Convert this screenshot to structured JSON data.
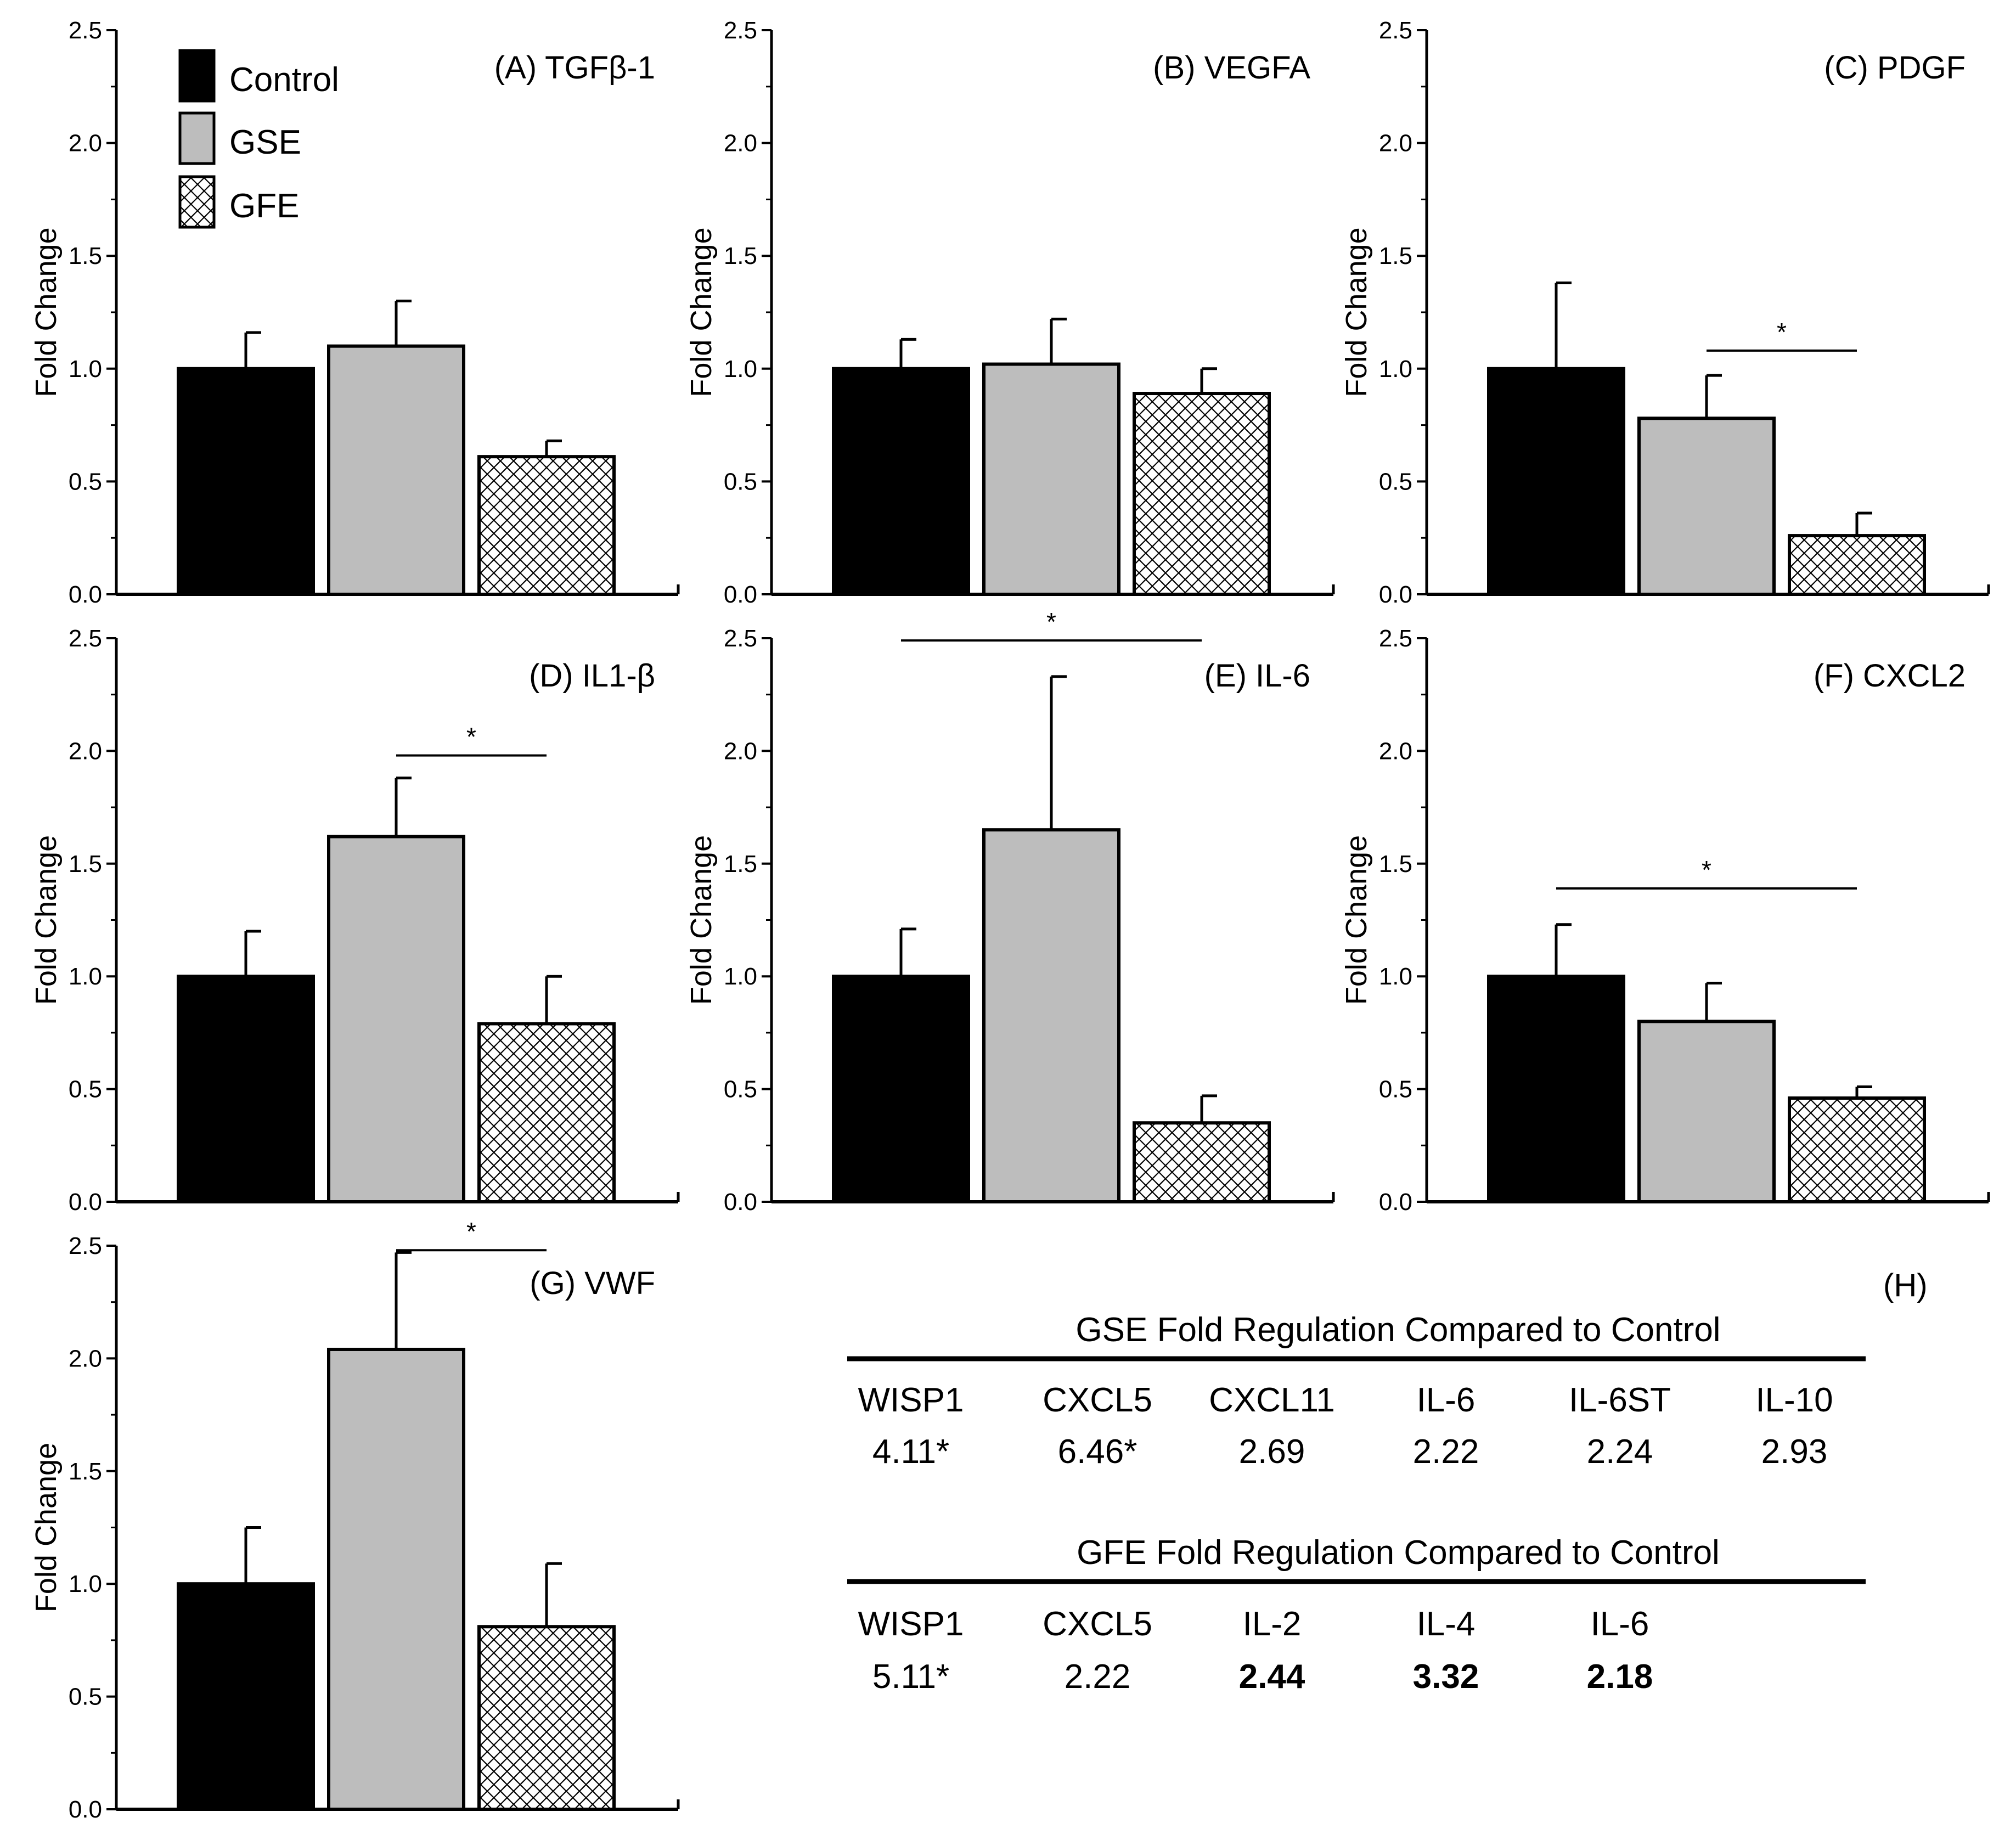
{
  "colors": {
    "control": "#000000",
    "gse": "#bdbdbd",
    "gfe_hatch": "#000000",
    "axis": "#000000"
  },
  "legend": {
    "items": [
      {
        "label": "Control",
        "style": "control"
      },
      {
        "label": "GSE",
        "style": "gse"
      },
      {
        "label": "GFE",
        "style": "gfe"
      }
    ]
  },
  "chart_data": [
    {
      "type": "bar",
      "title": "(A) TGFβ-1",
      "ylabel": "Fold Change",
      "ylim": [
        0,
        2.5
      ],
      "yticks": [
        "0.0",
        "0.5",
        "1.0",
        "1.5",
        "2.0",
        "2.5"
      ],
      "categories": [
        "Control",
        "GSE",
        "GFE"
      ],
      "values": [
        1.0,
        1.1,
        0.61
      ],
      "errors": [
        0.16,
        0.2,
        0.07
      ],
      "significance": []
    },
    {
      "type": "bar",
      "title": "(B) VEGFA",
      "ylabel": "Fold Change",
      "ylim": [
        0,
        2.5
      ],
      "yticks": [
        "0.0",
        "0.5",
        "1.0",
        "1.5",
        "2.0",
        "2.5"
      ],
      "categories": [
        "Control",
        "GSE",
        "GFE"
      ],
      "values": [
        1.0,
        1.02,
        0.89
      ],
      "errors": [
        0.13,
        0.2,
        0.11
      ],
      "significance": []
    },
    {
      "type": "bar",
      "title": "(C) PDGF",
      "ylabel": "Fold Change",
      "ylim": [
        0,
        2.5
      ],
      "yticks": [
        "0.0",
        "0.5",
        "1.0",
        "1.5",
        "2.0",
        "2.5"
      ],
      "categories": [
        "Control",
        "GSE",
        "GFE"
      ],
      "values": [
        1.0,
        0.78,
        0.26
      ],
      "errors": [
        0.38,
        0.19,
        0.1
      ],
      "significance": [
        {
          "from": 1,
          "to": 2,
          "y": 1.08,
          "label": "*"
        }
      ]
    },
    {
      "type": "bar",
      "title": "(D) IL1-β",
      "ylabel": "Fold Change",
      "ylim": [
        0,
        2.5
      ],
      "yticks": [
        "0.0",
        "0.5",
        "1.0",
        "1.5",
        "2.0",
        "2.5"
      ],
      "categories": [
        "Control",
        "GSE",
        "GFE"
      ],
      "values": [
        1.0,
        1.62,
        0.79
      ],
      "errors": [
        0.2,
        0.26,
        0.21
      ],
      "significance": [
        {
          "from": 1,
          "to": 2,
          "y": 1.98,
          "label": "*"
        }
      ]
    },
    {
      "type": "bar",
      "title": "(E) IL-6",
      "ylabel": "Fold Change",
      "ylim": [
        0,
        2.5
      ],
      "yticks": [
        "0.0",
        "0.5",
        "1.0",
        "1.5",
        "2.0",
        "2.5"
      ],
      "categories": [
        "Control",
        "GSE",
        "GFE"
      ],
      "values": [
        1.0,
        1.65,
        0.35
      ],
      "errors": [
        0.21,
        0.68,
        0.12
      ],
      "significance": [
        {
          "from": 0,
          "to": 2,
          "y": 2.49,
          "label": "*"
        }
      ]
    },
    {
      "type": "bar",
      "title": "(F) CXCL2",
      "ylabel": "Fold Change",
      "ylim": [
        0,
        2.5
      ],
      "yticks": [
        "0.0",
        "0.5",
        "1.0",
        "1.5",
        "2.0",
        "2.5"
      ],
      "categories": [
        "Control",
        "GSE",
        "GFE"
      ],
      "values": [
        1.0,
        0.8,
        0.46
      ],
      "errors": [
        0.23,
        0.17,
        0.05
      ],
      "significance": [
        {
          "from": 0,
          "to": 2,
          "y": 1.39,
          "label": "*"
        }
      ]
    },
    {
      "type": "bar",
      "title": "(G) VWF",
      "ylabel": "Fold Change",
      "ylim": [
        0,
        2.5
      ],
      "yticks": [
        "0.0",
        "0.5",
        "1.0",
        "1.5",
        "2.0",
        "2.5"
      ],
      "categories": [
        "Control",
        "GSE",
        "GFE"
      ],
      "values": [
        1.0,
        2.04,
        0.81
      ],
      "errors": [
        0.25,
        0.43,
        0.28
      ],
      "significance": [
        {
          "from": 1,
          "to": 2,
          "y": 2.48,
          "label": "*"
        }
      ]
    }
  ],
  "table": {
    "panel_label": "(H)",
    "sections": [
      {
        "title": "GSE Fold Regulation Compared to Control",
        "genes": [
          "WISP1",
          "CXCL5",
          "CXCL11",
          "IL-6",
          "IL-6ST",
          "IL-10"
        ],
        "values": [
          "4.11*",
          "6.46*",
          "2.69",
          "2.22",
          "2.24",
          "2.93"
        ],
        "bold": [
          false,
          false,
          false,
          false,
          false,
          false
        ]
      },
      {
        "title": "GFE Fold Regulation Compared to Control",
        "genes": [
          "WISP1",
          "CXCL5",
          "IL-2",
          "IL-4",
          "IL-6"
        ],
        "values": [
          "5.11*",
          "2.22",
          "2.44",
          "3.32",
          "2.18"
        ],
        "bold": [
          false,
          false,
          true,
          true,
          true
        ]
      }
    ]
  }
}
